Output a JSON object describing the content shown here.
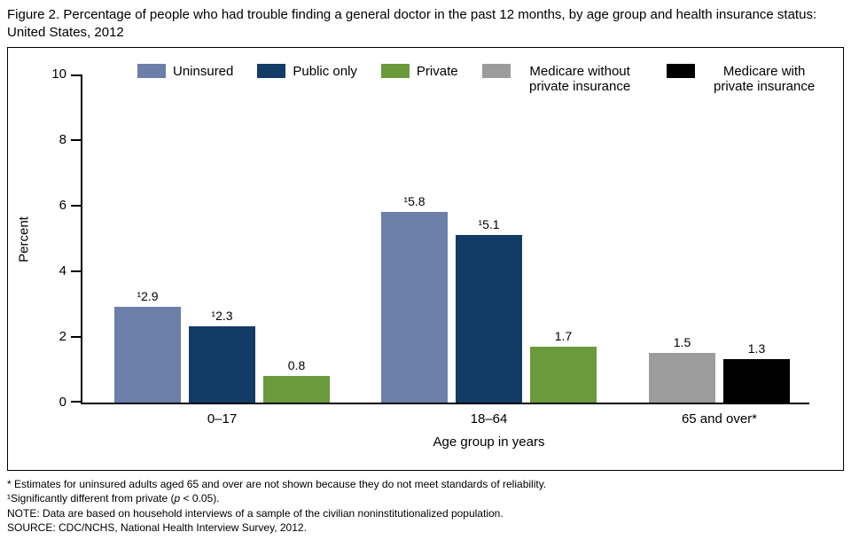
{
  "chart_data": {
    "type": "bar",
    "title": "Figure 2. Percentage of people who had trouble finding a general doctor in the past 12 months, by age group and health insurance status: United States, 2012",
    "xlabel": "Age group in years",
    "ylabel": "Percent",
    "ylim": [
      0,
      10
    ],
    "yticks": [
      0,
      2,
      4,
      6,
      8,
      10
    ],
    "grid": false,
    "legend_position": "top",
    "categories": [
      "0–17",
      "18–64",
      "65 and over*"
    ],
    "series": [
      {
        "name": "Uninsured",
        "color": "#6b7fa9",
        "values": [
          2.9,
          5.8,
          null
        ],
        "labels": [
          "¹2.9",
          "¹5.8",
          null
        ]
      },
      {
        "name": "Public only",
        "color": "#123c66",
        "values": [
          2.3,
          5.1,
          null
        ],
        "labels": [
          "¹2.3",
          "¹5.1",
          null
        ]
      },
      {
        "name": "Private",
        "color": "#6a9a3b",
        "values": [
          0.8,
          1.7,
          null
        ],
        "labels": [
          "0.8",
          "1.7",
          null
        ]
      },
      {
        "name": "Medicare without private insurance",
        "color": "#9c9c9c",
        "values": [
          null,
          null,
          1.5
        ],
        "labels": [
          null,
          null,
          "1.5"
        ]
      },
      {
        "name": "Medicare with private insurance",
        "color": "#000000",
        "values": [
          null,
          null,
          1.3
        ],
        "labels": [
          null,
          null,
          "1.3"
        ]
      }
    ]
  },
  "footnotes": {
    "reliability": "* Estimates for uninsured adults aged 65 and over are not shown because they do not meet standards of reliability.",
    "significance_pre": "¹Significantly different from private (",
    "significance_p": "p",
    "significance_post": " < 0.05).",
    "note": "NOTE: Data are based on household interviews of a sample of the civilian noninstitutionalized population.",
    "source": "SOURCE: CDC/NCHS, National Health Interview Survey, 2012."
  }
}
